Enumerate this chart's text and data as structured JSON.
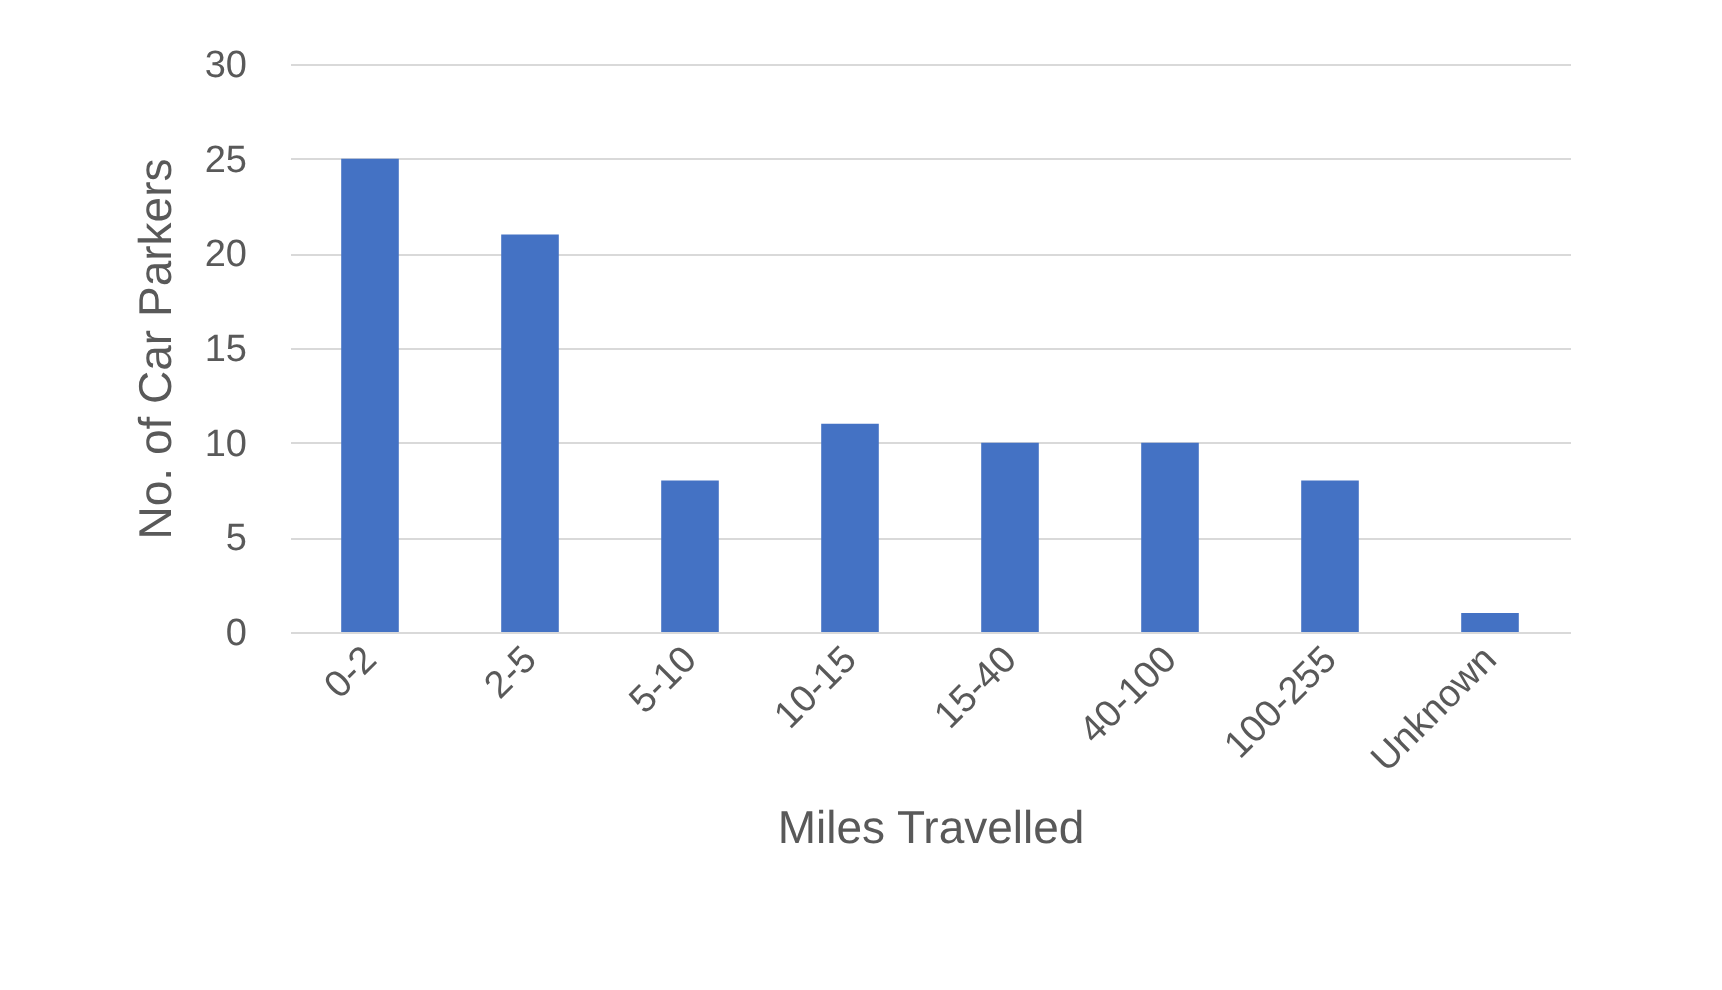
{
  "chart_data": {
    "type": "bar",
    "xlabel": "Miles Travelled",
    "ylabel": "No. of Car Parkers",
    "categories": [
      "0-2",
      "2-5",
      "5-10",
      "10-15",
      "15-40",
      "40-100",
      "100-255",
      "Unknown"
    ],
    "values": [
      25,
      21,
      8,
      11,
      10,
      10,
      8,
      1
    ],
    "color": "#4472c4",
    "ylim": [
      0,
      30
    ],
    "yticks": [
      0,
      5,
      10,
      15,
      20,
      25,
      30
    ],
    "grid": "y"
  }
}
